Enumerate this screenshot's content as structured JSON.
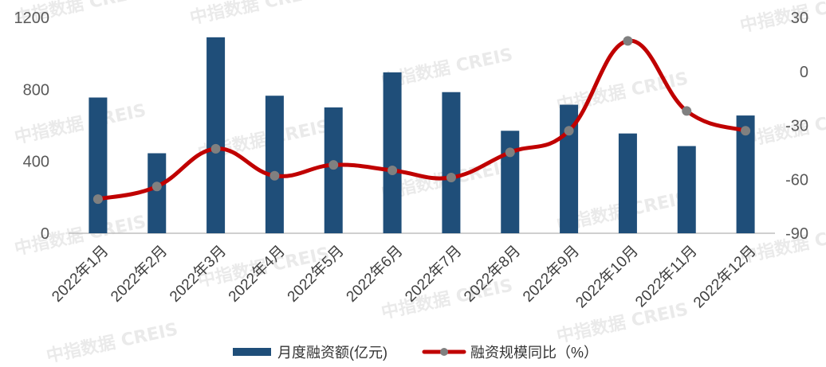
{
  "chart_data": {
    "type": "bar+line",
    "categories": [
      "2022年1月",
      "2022年2月",
      "2022年3月",
      "2022年4月",
      "2022年5月",
      "2022年6月",
      "2022年7月",
      "2022年8月",
      "2022年9月",
      "2022年10月",
      "2022年11月",
      "2022年12月"
    ],
    "series": [
      {
        "name": "月度融资额(亿元)",
        "type": "bar",
        "axis": "left",
        "color": "#1f4e79",
        "values": [
          755,
          445,
          1090,
          765,
          700,
          895,
          785,
          570,
          715,
          555,
          485,
          655
        ]
      },
      {
        "name": "融资规模同比（%）",
        "type": "line",
        "axis": "right",
        "color": "#c00000",
        "marker_color": "#808080",
        "values": [
          -71,
          -64,
          -43,
          -58,
          -52,
          -55,
          -59,
          -45,
          -33,
          17,
          -22,
          -33
        ]
      }
    ],
    "left_axis": {
      "ylim": [
        0,
        1200
      ],
      "ticks": [
        "0",
        "400",
        "800",
        "1200"
      ]
    },
    "right_axis": {
      "ylim": [
        -90,
        30
      ],
      "ticks": [
        "-90",
        "-60",
        "-30",
        "0",
        "30"
      ]
    },
    "legend": {
      "position": "bottom"
    },
    "grid": false,
    "watermark": "中指数据 CREIS"
  }
}
